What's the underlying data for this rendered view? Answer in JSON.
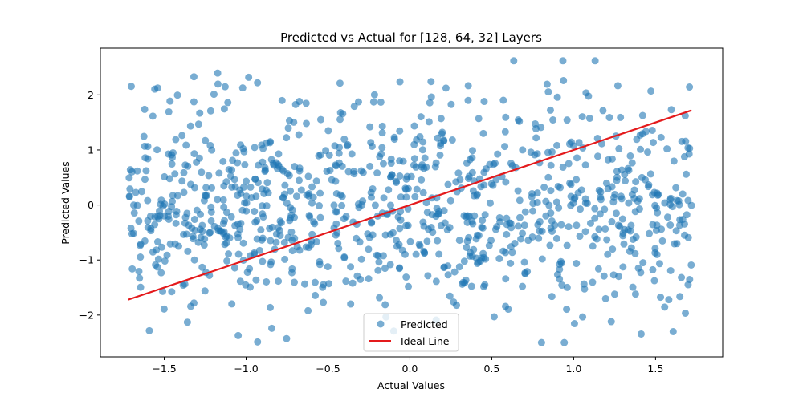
{
  "chart_data": {
    "type": "scatter",
    "title": "Predicted vs Actual for [128, 64, 32] Layers",
    "xlabel": "Actual Values",
    "ylabel": "Predicted Values",
    "xlim": [
      -1.89,
      1.91
    ],
    "ylim": [
      -2.76,
      2.85
    ],
    "xticks": [
      -1.5,
      -1.0,
      -0.5,
      0.0,
      0.5,
      1.0,
      1.5
    ],
    "xtick_labels": [
      "−1.5",
      "−1.0",
      "−0.5",
      "0.0",
      "0.5",
      "1.0",
      "1.5"
    ],
    "yticks": [
      -2,
      -1,
      0,
      1,
      2
    ],
    "ytick_labels": [
      "−2",
      "−1",
      "0",
      "1",
      "2"
    ],
    "grid": false,
    "legend_position": "lower center",
    "series": [
      {
        "name": "Predicted",
        "kind": "scatter",
        "color": "#1f77b4",
        "alpha": 0.6,
        "x_range": [
          -1.72,
          1.72
        ],
        "y_range": [
          -2.5,
          2.62
        ],
        "count": 1000,
        "seed": 42,
        "distribution": "x uniform over x_range; y independent standard normal (no correlation with x)"
      },
      {
        "name": "Ideal Line",
        "kind": "line",
        "color": "#e41a1c",
        "x": [
          -1.72,
          1.72
        ],
        "y": [
          -1.72,
          1.72
        ]
      }
    ],
    "legend": {
      "predicted_label": "Predicted",
      "ideal_label": "Ideal Line"
    }
  }
}
